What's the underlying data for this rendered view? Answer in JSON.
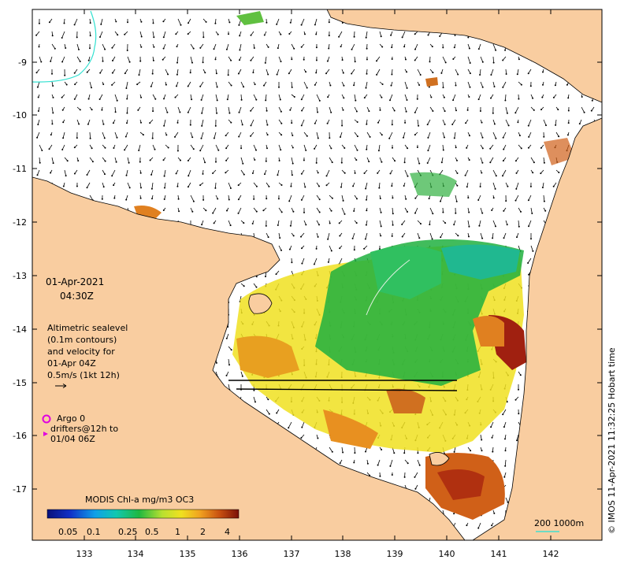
{
  "map": {
    "lon_ticks": [
      "133",
      "134",
      "135",
      "136",
      "137",
      "138",
      "139",
      "140",
      "141",
      "142"
    ],
    "lat_ticks": [
      "-9",
      "-10",
      "-11",
      "-12",
      "-13",
      "-14",
      "-15",
      "-16",
      "-17"
    ],
    "land_color": "#F9CDA0",
    "ocean_color": "#FFFFFF"
  },
  "info": {
    "date": "01-Apr-2021",
    "time": "04:30Z",
    "desc_lines": [
      "Altimetric sealevel",
      "(0.1m contours)",
      "and velocity for",
      "01-Apr 04Z",
      "0.5m/s (1kt 12h)"
    ]
  },
  "argo": {
    "label": "Argo 0",
    "drifter_lines": [
      "drifters@12h to",
      "01/04 06Z"
    ],
    "argo_color": "#E000E0"
  },
  "colorbar": {
    "title": "MODIS Chl-a mg/m3 OC3",
    "labels": [
      "0.05",
      "0.1",
      "0.25",
      "0.5",
      "1",
      "2",
      "4"
    ]
  },
  "scale": {
    "label": "200  1000m",
    "color": "#40E0D0"
  },
  "credit": "© IMOS 11-Apr-2021 11:32:25 Hobart time"
}
